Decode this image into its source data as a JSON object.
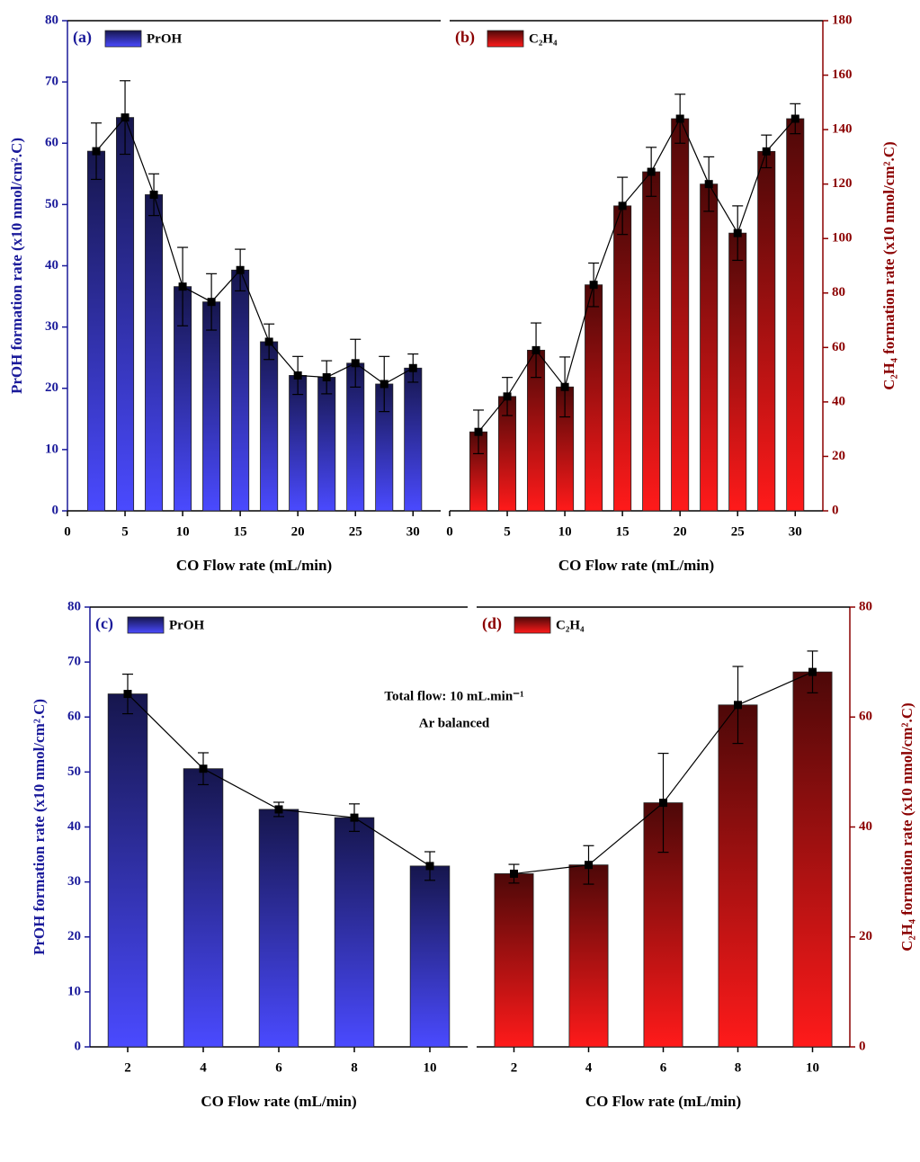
{
  "chart_data": [
    {
      "type": "bar",
      "title": "(a)",
      "x_label": "CO Flow rate (mL/min)",
      "y_label": "PrOH formation rate (x10 nmol/cm².C)",
      "axis_color": "#1a1a9a",
      "x": [
        2.5,
        5,
        7.5,
        10,
        12.5,
        15,
        17.5,
        20,
        22.5,
        25,
        27.5,
        30
      ],
      "xlim": [
        0,
        32.4
      ],
      "xticks": [
        0,
        5,
        10,
        15,
        20,
        25,
        30
      ],
      "ylim": [
        0,
        80
      ],
      "yticks": [
        0,
        10,
        20,
        30,
        40,
        50,
        60,
        70,
        80
      ],
      "series": [
        {
          "name": "PrOH",
          "color": "#4a4aff",
          "line_color": "#000000",
          "values": [
            58.7,
            64.2,
            51.6,
            36.6,
            34.1,
            39.3,
            27.6,
            22.1,
            21.8,
            24.1,
            20.7,
            23.3
          ],
          "errors": [
            4.6,
            6.0,
            3.4,
            6.4,
            4.6,
            3.4,
            2.9,
            3.1,
            2.7,
            3.9,
            4.5,
            2.3
          ]
        }
      ]
    },
    {
      "type": "bar",
      "title": "(b)",
      "x_label": "CO Flow rate (mL/min)",
      "y2_label": "C₂H₄ formation rate (x10 nmol/cm².C)",
      "axis_color": "#8b0000",
      "x": [
        2.5,
        5,
        7.5,
        10,
        12.5,
        15,
        17.5,
        20,
        22.5,
        25,
        27.5,
        30
      ],
      "xlim": [
        0,
        32.4
      ],
      "xticks": [
        0,
        5,
        10,
        15,
        20,
        25,
        30
      ],
      "y2lim": [
        0,
        180
      ],
      "y2ticks": [
        0,
        20,
        40,
        60,
        80,
        100,
        120,
        140,
        160,
        180
      ],
      "series": [
        {
          "name": "C₂H₄",
          "color": "#ff1a1a",
          "line_color": "#000000",
          "axis": "y2",
          "values": [
            29,
            42,
            59,
            45.5,
            83,
            112,
            124.5,
            144,
            120,
            102,
            132,
            144
          ],
          "errors": [
            8,
            7,
            10,
            11,
            8,
            10.5,
            9,
            9,
            10,
            10,
            6,
            5.5
          ]
        }
      ]
    },
    {
      "type": "bar",
      "title": "(c)",
      "x_label": "CO Flow rate (mL/min)",
      "y_label": "PrOH formation rate (x10 nmol/cm².C)",
      "axis_color": "#1a1a9a",
      "annotations": [
        "Total flow: 10 mL.min⁻¹",
        "Ar balanced"
      ],
      "categories": [
        "2",
        "4",
        "6",
        "8",
        "10"
      ],
      "ylim": [
        0,
        80
      ],
      "yticks": [
        0,
        10,
        20,
        30,
        40,
        50,
        60,
        70,
        80
      ],
      "series": [
        {
          "name": "PrOH",
          "color": "#4a4aff",
          "line_color": "#000000",
          "values": [
            64.2,
            50.6,
            43.2,
            41.7,
            32.9
          ],
          "errors": [
            3.6,
            2.9,
            1.3,
            2.5,
            2.6
          ]
        }
      ]
    },
    {
      "type": "bar",
      "title": "(d)",
      "x_label": "CO Flow rate (mL/min)",
      "y2_label": "C₂H₄ formation rate (x10 nmol/cm².C)",
      "axis_color": "#8b0000",
      "categories": [
        "2",
        "4",
        "6",
        "8",
        "10"
      ],
      "y2lim": [
        0,
        80
      ],
      "y2ticks": [
        0,
        20,
        40,
        60,
        80
      ],
      "series": [
        {
          "name": "C₂H₄",
          "color": "#ff1a1a",
          "line_color": "#000000",
          "axis": "y2",
          "values": [
            31.5,
            33.1,
            44.4,
            62.2,
            68.2
          ],
          "errors": [
            1.7,
            3.5,
            9,
            7,
            3.8
          ]
        }
      ]
    }
  ]
}
